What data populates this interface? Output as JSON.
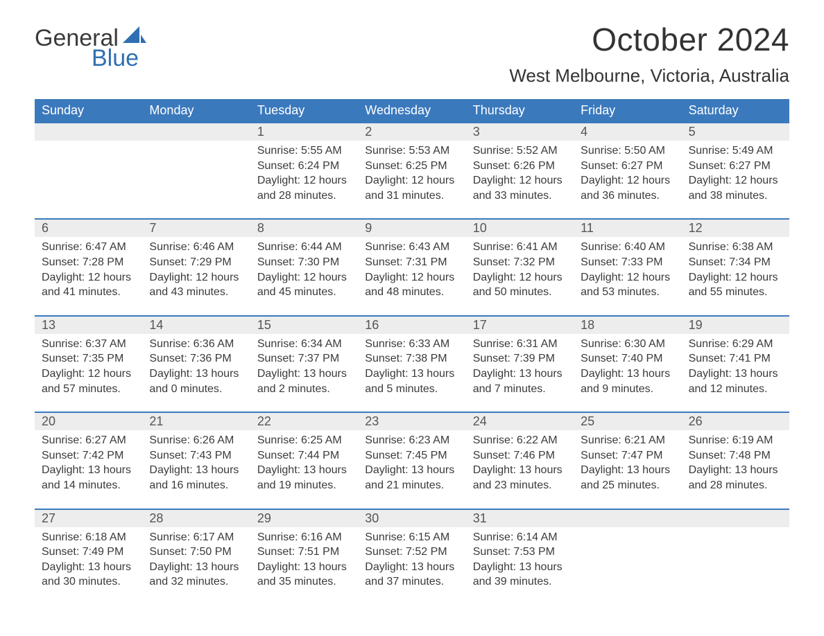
{
  "logo": {
    "word1": "General",
    "word2": "Blue",
    "sail_color": "#2f6fb3"
  },
  "title": "October 2024",
  "subtitle": "West Melbourne, Victoria, Australia",
  "colors": {
    "header_bg": "#3b79bd",
    "header_fg": "#ffffff",
    "daynum_bg": "#ededed",
    "row_border": "#3b79bd",
    "text": "#3a3a3a",
    "logo_blue": "#2f6fb3"
  },
  "weekdays": [
    "Sunday",
    "Monday",
    "Tuesday",
    "Wednesday",
    "Thursday",
    "Friday",
    "Saturday"
  ],
  "labels": {
    "sunrise": "Sunrise:",
    "sunset": "Sunset:",
    "daylight": "Daylight:"
  },
  "weeks": [
    [
      null,
      null,
      {
        "n": "1",
        "sunrise": "5:55 AM",
        "sunset": "6:24 PM",
        "daylight": "12 hours and 28 minutes."
      },
      {
        "n": "2",
        "sunrise": "5:53 AM",
        "sunset": "6:25 PM",
        "daylight": "12 hours and 31 minutes."
      },
      {
        "n": "3",
        "sunrise": "5:52 AM",
        "sunset": "6:26 PM",
        "daylight": "12 hours and 33 minutes."
      },
      {
        "n": "4",
        "sunrise": "5:50 AM",
        "sunset": "6:27 PM",
        "daylight": "12 hours and 36 minutes."
      },
      {
        "n": "5",
        "sunrise": "5:49 AM",
        "sunset": "6:27 PM",
        "daylight": "12 hours and 38 minutes."
      }
    ],
    [
      {
        "n": "6",
        "sunrise": "6:47 AM",
        "sunset": "7:28 PM",
        "daylight": "12 hours and 41 minutes."
      },
      {
        "n": "7",
        "sunrise": "6:46 AM",
        "sunset": "7:29 PM",
        "daylight": "12 hours and 43 minutes."
      },
      {
        "n": "8",
        "sunrise": "6:44 AM",
        "sunset": "7:30 PM",
        "daylight": "12 hours and 45 minutes."
      },
      {
        "n": "9",
        "sunrise": "6:43 AM",
        "sunset": "7:31 PM",
        "daylight": "12 hours and 48 minutes."
      },
      {
        "n": "10",
        "sunrise": "6:41 AM",
        "sunset": "7:32 PM",
        "daylight": "12 hours and 50 minutes."
      },
      {
        "n": "11",
        "sunrise": "6:40 AM",
        "sunset": "7:33 PM",
        "daylight": "12 hours and 53 minutes."
      },
      {
        "n": "12",
        "sunrise": "6:38 AM",
        "sunset": "7:34 PM",
        "daylight": "12 hours and 55 minutes."
      }
    ],
    [
      {
        "n": "13",
        "sunrise": "6:37 AM",
        "sunset": "7:35 PM",
        "daylight": "12 hours and 57 minutes."
      },
      {
        "n": "14",
        "sunrise": "6:36 AM",
        "sunset": "7:36 PM",
        "daylight": "13 hours and 0 minutes."
      },
      {
        "n": "15",
        "sunrise": "6:34 AM",
        "sunset": "7:37 PM",
        "daylight": "13 hours and 2 minutes."
      },
      {
        "n": "16",
        "sunrise": "6:33 AM",
        "sunset": "7:38 PM",
        "daylight": "13 hours and 5 minutes."
      },
      {
        "n": "17",
        "sunrise": "6:31 AM",
        "sunset": "7:39 PM",
        "daylight": "13 hours and 7 minutes."
      },
      {
        "n": "18",
        "sunrise": "6:30 AM",
        "sunset": "7:40 PM",
        "daylight": "13 hours and 9 minutes."
      },
      {
        "n": "19",
        "sunrise": "6:29 AM",
        "sunset": "7:41 PM",
        "daylight": "13 hours and 12 minutes."
      }
    ],
    [
      {
        "n": "20",
        "sunrise": "6:27 AM",
        "sunset": "7:42 PM",
        "daylight": "13 hours and 14 minutes."
      },
      {
        "n": "21",
        "sunrise": "6:26 AM",
        "sunset": "7:43 PM",
        "daylight": "13 hours and 16 minutes."
      },
      {
        "n": "22",
        "sunrise": "6:25 AM",
        "sunset": "7:44 PM",
        "daylight": "13 hours and 19 minutes."
      },
      {
        "n": "23",
        "sunrise": "6:23 AM",
        "sunset": "7:45 PM",
        "daylight": "13 hours and 21 minutes."
      },
      {
        "n": "24",
        "sunrise": "6:22 AM",
        "sunset": "7:46 PM",
        "daylight": "13 hours and 23 minutes."
      },
      {
        "n": "25",
        "sunrise": "6:21 AM",
        "sunset": "7:47 PM",
        "daylight": "13 hours and 25 minutes."
      },
      {
        "n": "26",
        "sunrise": "6:19 AM",
        "sunset": "7:48 PM",
        "daylight": "13 hours and 28 minutes."
      }
    ],
    [
      {
        "n": "27",
        "sunrise": "6:18 AM",
        "sunset": "7:49 PM",
        "daylight": "13 hours and 30 minutes."
      },
      {
        "n": "28",
        "sunrise": "6:17 AM",
        "sunset": "7:50 PM",
        "daylight": "13 hours and 32 minutes."
      },
      {
        "n": "29",
        "sunrise": "6:16 AM",
        "sunset": "7:51 PM",
        "daylight": "13 hours and 35 minutes."
      },
      {
        "n": "30",
        "sunrise": "6:15 AM",
        "sunset": "7:52 PM",
        "daylight": "13 hours and 37 minutes."
      },
      {
        "n": "31",
        "sunrise": "6:14 AM",
        "sunset": "7:53 PM",
        "daylight": "13 hours and 39 minutes."
      },
      null,
      null
    ]
  ]
}
